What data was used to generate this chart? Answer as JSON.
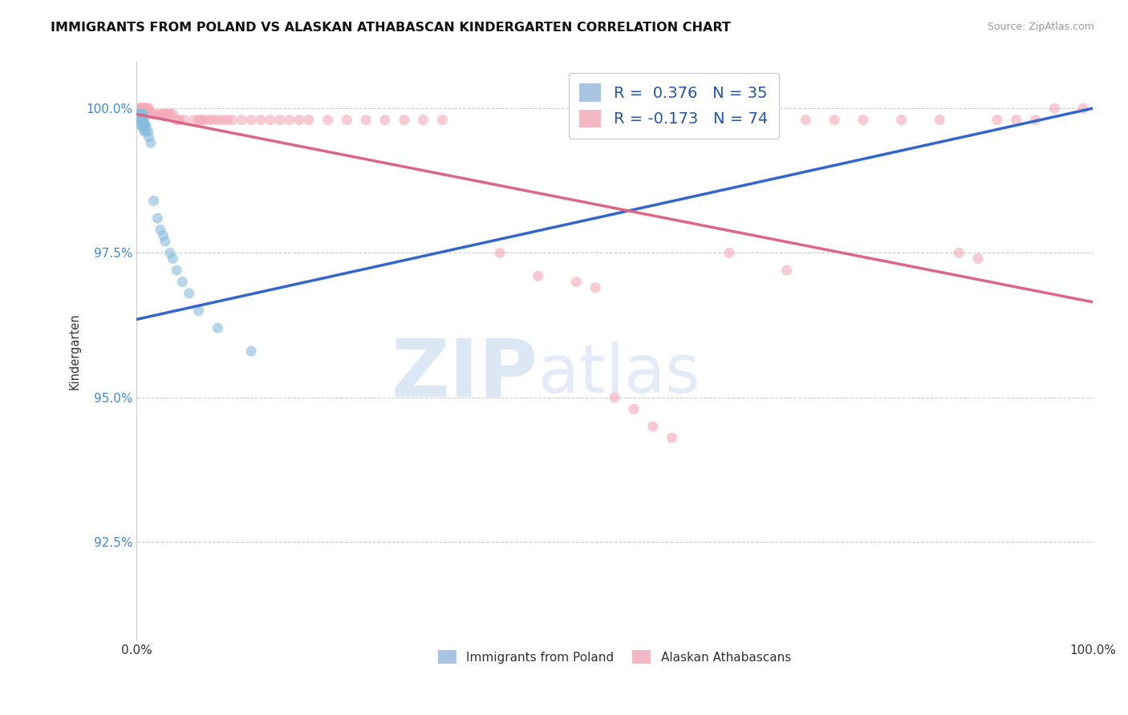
{
  "title": "IMMIGRANTS FROM POLAND VS ALASKAN ATHABASCAN KINDERGARTEN CORRELATION CHART",
  "source": "Source: ZipAtlas.com",
  "ylabel": "Kindergarten",
  "xmin": 0.0,
  "xmax": 1.0,
  "ymin": 0.908,
  "ymax": 1.008,
  "yticks": [
    0.925,
    0.95,
    0.975,
    1.0
  ],
  "ytick_labels": [
    "92.5%",
    "95.0%",
    "97.5%",
    "100.0%"
  ],
  "xticks": [
    0.0,
    1.0
  ],
  "xtick_labels": [
    "0.0%",
    "100.0%"
  ],
  "legend_entries": [
    {
      "label": "R =  0.376   N = 35",
      "color": "#a8c4e0"
    },
    {
      "label": "R = -0.173   N = 74",
      "color": "#f4b8c4"
    }
  ],
  "legend_bottom": [
    "Immigrants from Poland",
    "Alaskan Athabascans"
  ],
  "blue_scatter": {
    "x": [
      0.003,
      0.003,
      0.004,
      0.004,
      0.005,
      0.005,
      0.005,
      0.006,
      0.006,
      0.006,
      0.007,
      0.007,
      0.007,
      0.008,
      0.008,
      0.008,
      0.009,
      0.01,
      0.01,
      0.012,
      0.013,
      0.015,
      0.018,
      0.022,
      0.025,
      0.028,
      0.03,
      0.035,
      0.038,
      0.042,
      0.048,
      0.055,
      0.065,
      0.085,
      0.12
    ],
    "y": [
      0.999,
      0.998,
      0.999,
      0.998,
      0.999,
      0.998,
      0.997,
      0.999,
      0.998,
      0.997,
      0.999,
      0.998,
      0.997,
      0.998,
      0.997,
      0.996,
      0.997,
      0.997,
      0.996,
      0.996,
      0.995,
      0.994,
      0.984,
      0.981,
      0.979,
      0.978,
      0.977,
      0.975,
      0.974,
      0.972,
      0.97,
      0.968,
      0.965,
      0.962,
      0.958
    ],
    "color": "#88bbdd",
    "size": 90,
    "alpha": 0.6
  },
  "pink_scatter": {
    "x": [
      0.003,
      0.003,
      0.004,
      0.005,
      0.005,
      0.006,
      0.006,
      0.007,
      0.008,
      0.008,
      0.009,
      0.01,
      0.01,
      0.012,
      0.013,
      0.015,
      0.018,
      0.02,
      0.025,
      0.028,
      0.03,
      0.032,
      0.035,
      0.038,
      0.042,
      0.045,
      0.05,
      0.06,
      0.065,
      0.068,
      0.07,
      0.075,
      0.08,
      0.085,
      0.09,
      0.095,
      0.1,
      0.11,
      0.12,
      0.13,
      0.14,
      0.15,
      0.16,
      0.17,
      0.18,
      0.2,
      0.22,
      0.24,
      0.26,
      0.28,
      0.3,
      0.32,
      0.38,
      0.42,
      0.46,
      0.48,
      0.5,
      0.52,
      0.54,
      0.56,
      0.62,
      0.68,
      0.7,
      0.73,
      0.76,
      0.8,
      0.84,
      0.86,
      0.88,
      0.9,
      0.92,
      0.94,
      0.96,
      0.99
    ],
    "y": [
      1.0,
      1.0,
      1.0,
      1.0,
      1.0,
      1.0,
      1.0,
      1.0,
      1.0,
      1.0,
      1.0,
      1.0,
      1.0,
      1.0,
      1.0,
      0.999,
      0.999,
      0.999,
      0.999,
      0.999,
      0.999,
      0.999,
      0.999,
      0.999,
      0.998,
      0.998,
      0.998,
      0.998,
      0.998,
      0.998,
      0.998,
      0.998,
      0.998,
      0.998,
      0.998,
      0.998,
      0.998,
      0.998,
      0.998,
      0.998,
      0.998,
      0.998,
      0.998,
      0.998,
      0.998,
      0.998,
      0.998,
      0.998,
      0.998,
      0.998,
      0.998,
      0.998,
      0.975,
      0.971,
      0.97,
      0.969,
      0.95,
      0.948,
      0.945,
      0.943,
      0.975,
      0.972,
      0.998,
      0.998,
      0.998,
      0.998,
      0.998,
      0.975,
      0.974,
      0.998,
      0.998,
      0.998,
      1.0,
      1.0
    ],
    "color": "#f4a8b8",
    "size": 90,
    "alpha": 0.6
  },
  "blue_line": {
    "x0": 0.0,
    "y0": 0.9635,
    "x1": 1.0,
    "y1": 1.0,
    "color": "#3366cc",
    "linewidth": 2.5
  },
  "pink_line": {
    "x0": 0.0,
    "y0": 0.999,
    "x1": 1.0,
    "y1": 0.9665,
    "color": "#dd6688",
    "linewidth": 2.5
  },
  "watermark_zip": "ZIP",
  "watermark_atlas": "atlas",
  "background_color": "#ffffff",
  "grid_color": "#cccccc",
  "title_fontsize": 11.5,
  "tick_label_color_y": "#4488cc",
  "tick_label_color_x": "#333333"
}
